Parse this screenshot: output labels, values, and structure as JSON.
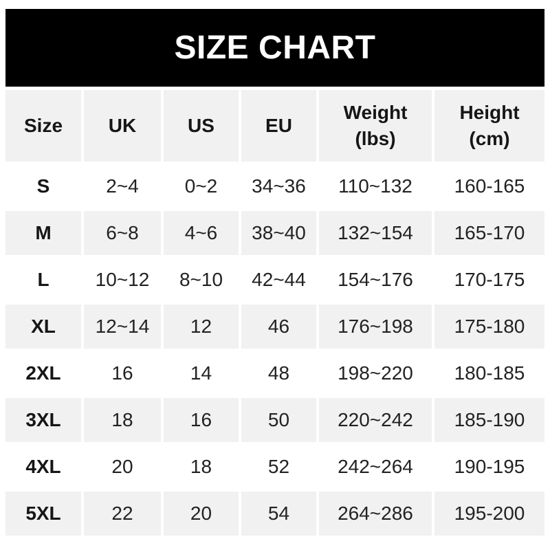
{
  "banner": {
    "title": "SIZE CHART",
    "background": "#000000",
    "text_color": "#ffffff"
  },
  "colors": {
    "page_background": "#ffffff",
    "alt_row_background": "#f1f1f1",
    "text": "#222222"
  },
  "chart_data": {
    "type": "table",
    "title": "SIZE CHART",
    "columns": [
      "Size",
      "UK",
      "US",
      "EU",
      "Weight (lbs)",
      "Height (cm)"
    ],
    "columns_display": [
      "Size",
      "UK",
      "US",
      "EU",
      "Weight\n(lbs)",
      "Height\n(cm)"
    ],
    "rows": [
      [
        "S",
        "2~4",
        "0~2",
        "34~36",
        "110~132",
        "160-165"
      ],
      [
        "M",
        "6~8",
        "4~6",
        "38~40",
        "132~154",
        "165-170"
      ],
      [
        "L",
        "10~12",
        "8~10",
        "42~44",
        "154~176",
        "170-175"
      ],
      [
        "XL",
        "12~14",
        "12",
        "46",
        "176~198",
        "175-180"
      ],
      [
        "2XL",
        "16",
        "14",
        "48",
        "198~220",
        "180-185"
      ],
      [
        "3XL",
        "18",
        "16",
        "50",
        "220~242",
        "185-190"
      ],
      [
        "4XL",
        "20",
        "18",
        "52",
        "242~264",
        "190-195"
      ],
      [
        "5XL",
        "22",
        "20",
        "54",
        "264~286",
        "195-200"
      ]
    ]
  }
}
